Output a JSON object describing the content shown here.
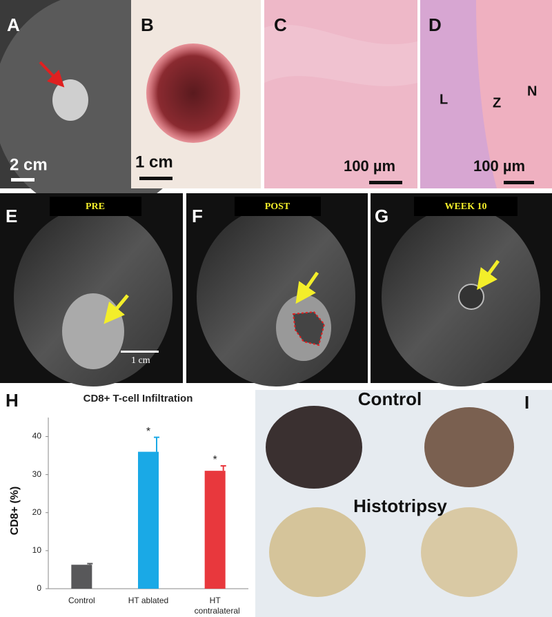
{
  "panels": {
    "A": {
      "label": "A",
      "scale": "2 cm"
    },
    "B": {
      "label": "B",
      "scale": "1 cm"
    },
    "C": {
      "label": "C",
      "scale": "100 µm"
    },
    "D": {
      "label": "D",
      "scale": "100 µm",
      "regions": [
        "L",
        "Z",
        "N"
      ]
    },
    "E": {
      "label": "E",
      "tag": "PRE",
      "scale": "1 cm"
    },
    "F": {
      "label": "F",
      "tag": "POST"
    },
    "G": {
      "label": "G",
      "tag": "WEEK 10"
    },
    "I": {
      "label": "I",
      "groups": [
        "Control",
        "Histotripsy"
      ]
    }
  },
  "chart_data": {
    "type": "bar",
    "panel_label": "H",
    "title": "CD8+ T-cell Infiltration",
    "y_label": "CD8+ (%)",
    "categories": [
      "Control",
      "HT ablated",
      "HT contralateral"
    ],
    "values": [
      6.3,
      36,
      31
    ],
    "errors": [
      0.3,
      3.8,
      1.3
    ],
    "colors": [
      "#58585a",
      "#1aa9e6",
      "#e8383d"
    ],
    "annotations": [
      {
        "category": "HT ablated",
        "text": "*"
      },
      {
        "category": "HT contralateral",
        "text": "*"
      }
    ],
    "ylim": [
      0,
      45
    ],
    "yticks": [
      0,
      10,
      20,
      30,
      40
    ]
  }
}
